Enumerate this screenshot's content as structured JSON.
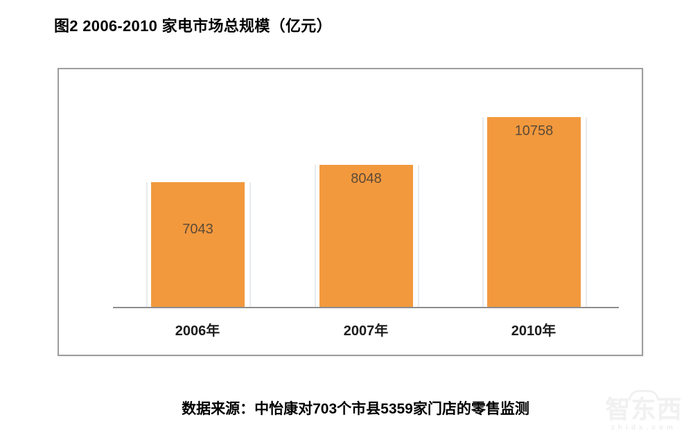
{
  "page": {
    "title": "图2 2006-2010 家电市场总规模（亿元）",
    "source_note": "数据来源：中怡康对703个市县5359家门店的零售监测",
    "watermark": {
      "brand": "智东西",
      "domain": "zhidx.com"
    }
  },
  "chart_data": {
    "type": "bar",
    "title": "图2 2006-2010 家电市场总规模（亿元）",
    "categories": [
      "2006年",
      "2007年",
      "2010年"
    ],
    "values": [
      7043,
      8048,
      10758
    ],
    "unit": "亿元",
    "xlabel": "",
    "ylabel": "",
    "ylim": [
      0,
      13500
    ],
    "grid": false,
    "legend": false,
    "bar_color": "#F2993E",
    "value_label_color": "#5D4A37",
    "value_label_positions": [
      "middle",
      "top",
      "top"
    ],
    "axis_color": "#8d8d8d",
    "frame_border_color": "#9d9d9d"
  }
}
